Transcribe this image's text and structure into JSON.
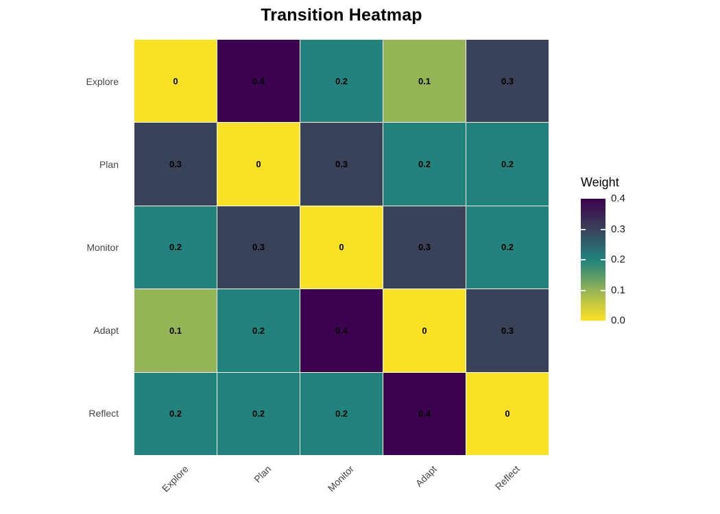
{
  "chart_data": {
    "type": "heatmap",
    "title": "Transition Heatmap",
    "rows": [
      "Explore",
      "Plan",
      "Monitor",
      "Adapt",
      "Reflect"
    ],
    "columns": [
      "Explore",
      "Plan",
      "Monitor",
      "Adapt",
      "Reflect"
    ],
    "values": [
      [
        0,
        0.4,
        0.2,
        0.1,
        0.3
      ],
      [
        0.3,
        0,
        0.3,
        0.2,
        0.2
      ],
      [
        0.2,
        0.3,
        0,
        0.3,
        0.2
      ],
      [
        0.1,
        0.2,
        0.4,
        0,
        0.3
      ],
      [
        0.2,
        0.2,
        0.2,
        0.4,
        0
      ]
    ],
    "cell_labels": [
      [
        "0",
        "0.4",
        "0.2",
        "0.1",
        "0.3"
      ],
      [
        "0.3",
        "0",
        "0.3",
        "0.2",
        "0.2"
      ],
      [
        "0.2",
        "0.3",
        "0",
        "0.3",
        "0.2"
      ],
      [
        "0.1",
        "0.2",
        "0.4",
        "0",
        "0.3"
      ],
      [
        "0.2",
        "0.2",
        "0.2",
        "0.4",
        "0"
      ]
    ],
    "legend": {
      "title": "Weight",
      "tick_labels": [
        "0.4",
        "0.3",
        "0.2",
        "0.1",
        "0.0"
      ],
      "range": [
        0,
        0.4
      ],
      "position": "right"
    },
    "colormap": {
      "name": "viridis-reversed",
      "stops": {
        "0": "#FBE123",
        "0.1": "#95B456",
        "0.2": "#21837B",
        "0.3": "#3A4259",
        "0.4": "#3B024F"
      },
      "gradient_top_to_bottom": [
        "#3B024F",
        "#3B2254",
        "#3A4259",
        "#2D636C",
        "#21837B",
        "#55996A",
        "#95B456",
        "#CCCB3C",
        "#FBE123"
      ]
    },
    "axes": {
      "grid": false,
      "x_tick_angle": 45
    }
  }
}
